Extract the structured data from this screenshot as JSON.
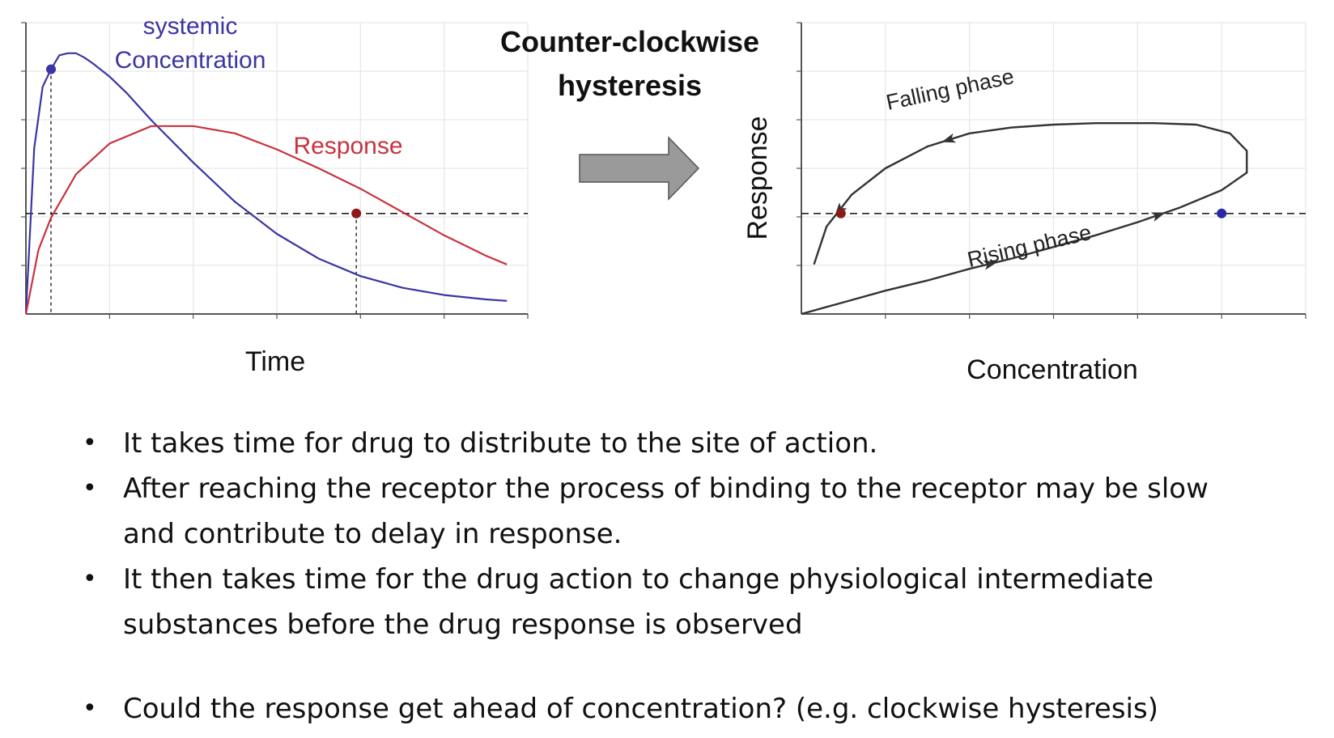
{
  "title": [
    "Counter-clockwise",
    "hysteresis"
  ],
  "colors": {
    "concentration": "#3b35a3",
    "response": "#c8333e",
    "curve": "#333333",
    "grid": "#e6e6e6",
    "arrow_fill": "#9a9a9a",
    "arrow_stroke": "#555555"
  },
  "chart_data": [
    {
      "type": "line",
      "xlabel": "Time",
      "ylabel": "",
      "x_ticks": 6,
      "y_ticks": 6,
      "grid": true,
      "threshold_line": {
        "y": 0.345,
        "style": "dashed"
      },
      "series": [
        {
          "name": "systemic\nConcentration",
          "color": "#3b35a3",
          "points": [
            [
              0.0,
              0.0
            ],
            [
              0.1,
              0.57
            ],
            [
              0.2,
              0.78
            ],
            [
              0.3,
              0.84
            ],
            [
              0.4,
              0.888
            ],
            [
              0.5,
              0.895
            ],
            [
              0.6,
              0.895
            ],
            [
              0.7,
              0.88
            ],
            [
              0.8,
              0.86
            ],
            [
              1.0,
              0.815
            ],
            [
              1.2,
              0.76
            ],
            [
              1.5,
              0.665
            ],
            [
              2.0,
              0.52
            ],
            [
              2.5,
              0.385
            ],
            [
              3.0,
              0.275
            ],
            [
              3.5,
              0.19
            ],
            [
              4.0,
              0.13
            ],
            [
              4.5,
              0.09
            ],
            [
              5.0,
              0.065
            ],
            [
              5.5,
              0.05
            ],
            [
              5.75,
              0.045
            ]
          ]
        },
        {
          "name": "Response",
          "color": "#c8333e",
          "points": [
            [
              0.0,
              0.0
            ],
            [
              0.15,
              0.22
            ],
            [
              0.3,
              0.33
            ],
            [
              0.6,
              0.48
            ],
            [
              1.0,
              0.585
            ],
            [
              1.5,
              0.645
            ],
            [
              2.0,
              0.645
            ],
            [
              2.5,
              0.62
            ],
            [
              3.0,
              0.565
            ],
            [
              3.5,
              0.5
            ],
            [
              4.0,
              0.43
            ],
            [
              4.5,
              0.35
            ],
            [
              5.0,
              0.27
            ],
            [
              5.5,
              0.2
            ],
            [
              5.75,
              0.17
            ]
          ]
        }
      ],
      "markers": [
        {
          "x": 0.3,
          "y": 0.84,
          "color": "#3b35a3",
          "drop_line": true
        },
        {
          "x": 3.95,
          "y": 0.345,
          "color": "#8b1a1a",
          "drop_line": true
        }
      ]
    },
    {
      "type": "line",
      "xlabel": "Concentration",
      "ylabel": "Response",
      "x_ticks": 6,
      "y_ticks": 6,
      "grid": true,
      "threshold_line": {
        "y": 0.345,
        "style": "dashed"
      },
      "loop": {
        "name": "",
        "color": "#333333",
        "points": [
          [
            0.0,
            0.0
          ],
          [
            0.5,
            0.04
          ],
          [
            1.0,
            0.08
          ],
          [
            1.5,
            0.115
          ],
          [
            2.0,
            0.155
          ],
          [
            2.5,
            0.19
          ],
          [
            3.0,
            0.23
          ],
          [
            3.5,
            0.27
          ],
          [
            4.0,
            0.315
          ],
          [
            4.5,
            0.365
          ],
          [
            5.0,
            0.425
          ],
          [
            5.3,
            0.485
          ],
          [
            5.3,
            0.56
          ],
          [
            5.1,
            0.62
          ],
          [
            4.7,
            0.65
          ],
          [
            4.2,
            0.655
          ],
          [
            3.5,
            0.655
          ],
          [
            3.0,
            0.65
          ],
          [
            2.5,
            0.64
          ],
          [
            2.0,
            0.62
          ],
          [
            1.5,
            0.575
          ],
          [
            1.0,
            0.5
          ],
          [
            0.6,
            0.41
          ],
          [
            0.3,
            0.3
          ],
          [
            0.15,
            0.17
          ]
        ]
      },
      "arrows_at": [
        4,
        8,
        19,
        22
      ],
      "markers": [
        {
          "x": 0.47,
          "y": 0.345,
          "color": "#8b1a1a"
        },
        {
          "x": 5.0,
          "y": 0.345,
          "color": "#2a2aa8"
        }
      ],
      "annotations": [
        {
          "text": "Falling phase",
          "x": 1.03,
          "y": 0.7,
          "angle": -12
        },
        {
          "text": "Rising phase",
          "x": 2.0,
          "y": 0.16,
          "angle": -13
        }
      ]
    }
  ],
  "bullets": [
    {
      "lines": [
        "It takes time for drug to distribute to the site of action."
      ]
    },
    {
      "lines": [
        "After reaching the receptor the process of binding to the receptor may be slow",
        "and contribute to delay in response."
      ]
    },
    {
      "lines": [
        "It then takes time for the drug action to change physiological intermediate",
        "substances before the drug response is observed"
      ]
    },
    {
      "lines": [
        "Could the response get ahead of concentration? (e.g. clockwise hysteresis)"
      ],
      "gap": true
    }
  ]
}
